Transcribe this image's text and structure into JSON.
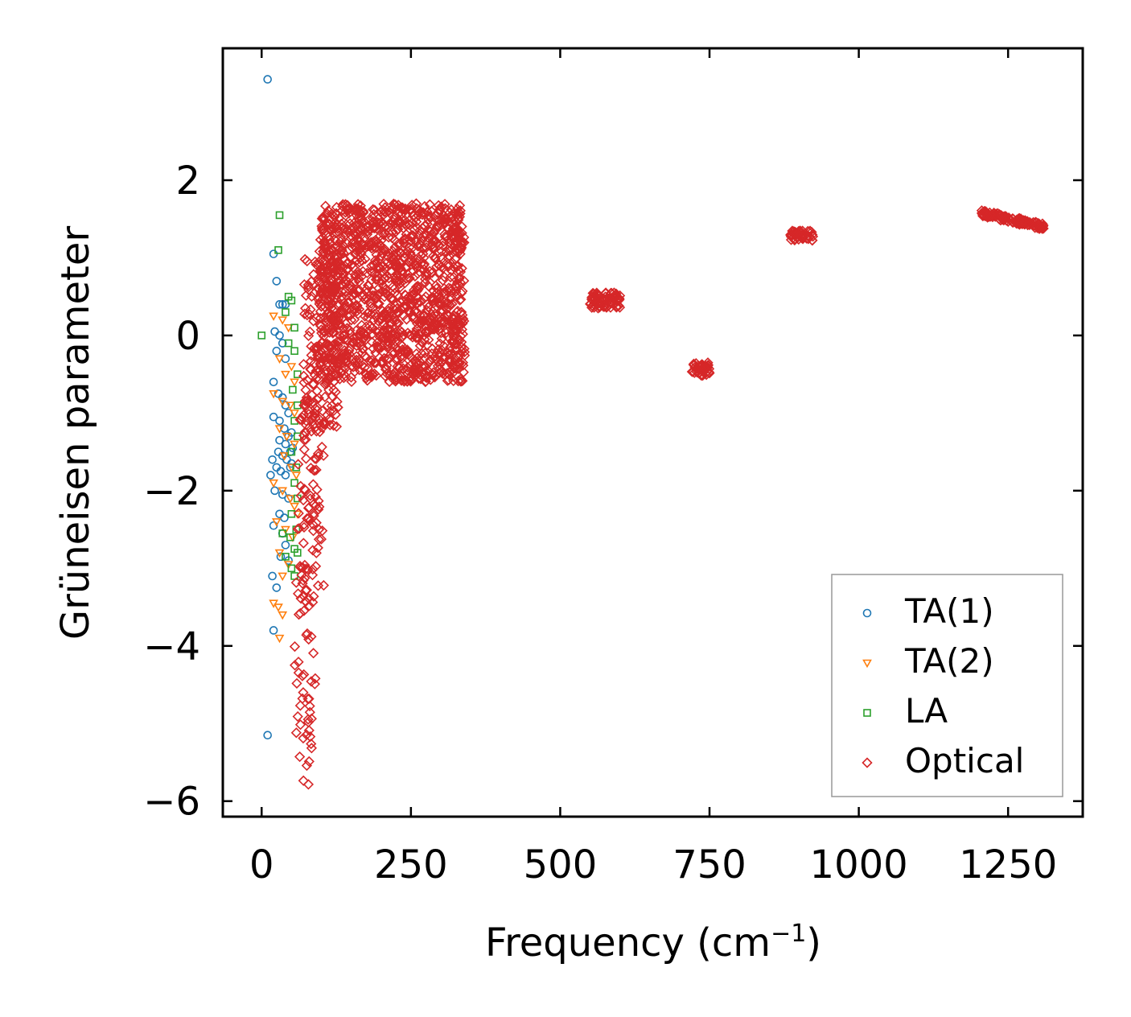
{
  "chart_data": {
    "type": "scatter",
    "title": "",
    "xlabel": "Frequency (cm",
    "xlabel_sup": "−1",
    "xlabel_end": ")",
    "ylabel": "Grüneisen parameter",
    "xlim": [
      -65,
      1375
    ],
    "ylim": [
      -6.2,
      3.7
    ],
    "xticks": [
      0,
      250,
      500,
      750,
      1000,
      1250
    ],
    "xtick_labels": [
      "0",
      "250",
      "500",
      "750",
      "1000",
      "1250"
    ],
    "yticks": [
      -6,
      -4,
      -2,
      0,
      2
    ],
    "ytick_labels": [
      "−6",
      "−4",
      "−2",
      "0",
      "2"
    ],
    "grid": false,
    "legend_position": "bottom-right",
    "series": [
      {
        "name": "TA(1)",
        "marker": "circle",
        "color": "#1f77b4",
        "points": [
          [
            10,
            3.3
          ],
          [
            20,
            1.05
          ],
          [
            25,
            0.7
          ],
          [
            30,
            0.4
          ],
          [
            35,
            0.4
          ],
          [
            40,
            0.4
          ],
          [
            22,
            0.05
          ],
          [
            30,
            0.0
          ],
          [
            25,
            -0.2
          ],
          [
            35,
            -0.1
          ],
          [
            40,
            -0.3
          ],
          [
            20,
            -0.6
          ],
          [
            28,
            -0.75
          ],
          [
            35,
            -0.8
          ],
          [
            40,
            -0.9
          ],
          [
            45,
            -1.0
          ],
          [
            20,
            -1.05
          ],
          [
            30,
            -1.1
          ],
          [
            38,
            -1.2
          ],
          [
            45,
            -1.3
          ],
          [
            50,
            -1.25
          ],
          [
            30,
            -1.35
          ],
          [
            40,
            -1.4
          ],
          [
            48,
            -1.5
          ],
          [
            52,
            -1.45
          ],
          [
            28,
            -1.5
          ],
          [
            35,
            -1.55
          ],
          [
            42,
            -1.6
          ],
          [
            50,
            -1.65
          ],
          [
            18,
            -1.6
          ],
          [
            25,
            -1.7
          ],
          [
            32,
            -1.75
          ],
          [
            40,
            -1.8
          ],
          [
            48,
            -1.7
          ],
          [
            15,
            -1.8
          ],
          [
            22,
            -2.0
          ],
          [
            35,
            -2.05
          ],
          [
            45,
            -2.1
          ],
          [
            30,
            -2.3
          ],
          [
            38,
            -2.35
          ],
          [
            20,
            -2.45
          ],
          [
            35,
            -2.55
          ],
          [
            40,
            -2.7
          ],
          [
            32,
            -2.85
          ],
          [
            45,
            -2.9
          ],
          [
            18,
            -3.1
          ],
          [
            25,
            -3.25
          ],
          [
            20,
            -3.8
          ],
          [
            10,
            -5.15
          ]
        ]
      },
      {
        "name": "TA(2)",
        "marker": "triangle-down",
        "color": "#ff7f0e",
        "points": [
          [
            20,
            0.25
          ],
          [
            35,
            0.2
          ],
          [
            45,
            0.1
          ],
          [
            30,
            -0.3
          ],
          [
            40,
            -0.5
          ],
          [
            50,
            -0.4
          ],
          [
            55,
            -0.6
          ],
          [
            20,
            -0.75
          ],
          [
            35,
            -0.85
          ],
          [
            48,
            -0.9
          ],
          [
            55,
            -1.0
          ],
          [
            30,
            -1.2
          ],
          [
            42,
            -1.3
          ],
          [
            55,
            -1.4
          ],
          [
            38,
            -1.55
          ],
          [
            50,
            -1.7
          ],
          [
            58,
            -1.8
          ],
          [
            20,
            -1.9
          ],
          [
            35,
            -2.0
          ],
          [
            48,
            -2.1
          ],
          [
            55,
            -2.2
          ],
          [
            60,
            -2.3
          ],
          [
            25,
            -2.4
          ],
          [
            40,
            -2.5
          ],
          [
            52,
            -2.6
          ],
          [
            30,
            -2.8
          ],
          [
            45,
            -2.95
          ],
          [
            35,
            -3.1
          ],
          [
            20,
            -3.45
          ],
          [
            28,
            -3.5
          ],
          [
            35,
            -3.6
          ],
          [
            30,
            -3.9
          ]
        ]
      },
      {
        "name": "LA",
        "marker": "square",
        "color": "#2ca02c",
        "points": [
          [
            0,
            0.0
          ],
          [
            30,
            1.55
          ],
          [
            28,
            1.1
          ],
          [
            45,
            0.5
          ],
          [
            50,
            0.45
          ],
          [
            40,
            0.3
          ],
          [
            55,
            0.1
          ],
          [
            45,
            -0.1
          ],
          [
            55,
            -0.2
          ],
          [
            60,
            -0.5
          ],
          [
            52,
            -0.7
          ],
          [
            60,
            -0.9
          ],
          [
            55,
            -1.1
          ],
          [
            60,
            -1.3
          ],
          [
            50,
            -1.5
          ],
          [
            58,
            -1.7
          ],
          [
            55,
            -1.9
          ],
          [
            60,
            -2.1
          ],
          [
            50,
            -2.3
          ],
          [
            58,
            -2.5
          ],
          [
            35,
            -2.55
          ],
          [
            48,
            -2.6
          ],
          [
            55,
            -2.75
          ],
          [
            60,
            -2.8
          ],
          [
            40,
            -2.85
          ],
          [
            50,
            -3.0
          ],
          [
            55,
            -3.1
          ]
        ]
      },
      {
        "name": "Optical",
        "marker": "diamond",
        "color": "#d62728",
        "points": [],
        "clusters": [
          {
            "x": [
              55,
              90
            ],
            "y": [
              -5.8,
              -3.0
            ],
            "n": 55
          },
          {
            "x": [
              60,
              105
            ],
            "y": [
              -3.3,
              -0.8
            ],
            "n": 90
          },
          {
            "x": [
              70,
              130
            ],
            "y": [
              -1.2,
              1.0
            ],
            "n": 160
          },
          {
            "x": [
              95,
              340
            ],
            "y": [
              -0.6,
              1.7
            ],
            "n": 1400
          },
          {
            "x": [
              550,
              600
            ],
            "y": [
              0.35,
              0.55
            ],
            "n": 70
          },
          {
            "x": [
              720,
              750
            ],
            "y": [
              -0.52,
              -0.35
            ],
            "n": 45
          },
          {
            "x": [
              885,
              925
            ],
            "y": [
              1.22,
              1.35
            ],
            "n": 45
          },
          {
            "x": [
              1205,
              1310
            ],
            "y": [
              1.35,
              1.6
            ],
            "n": 130
          }
        ]
      }
    ]
  },
  "colors": {
    "ta1": "#1f77b4",
    "ta2": "#ff7f0e",
    "la": "#2ca02c",
    "optical": "#d62728",
    "axis": "#000000",
    "legend_border": "#999999"
  }
}
